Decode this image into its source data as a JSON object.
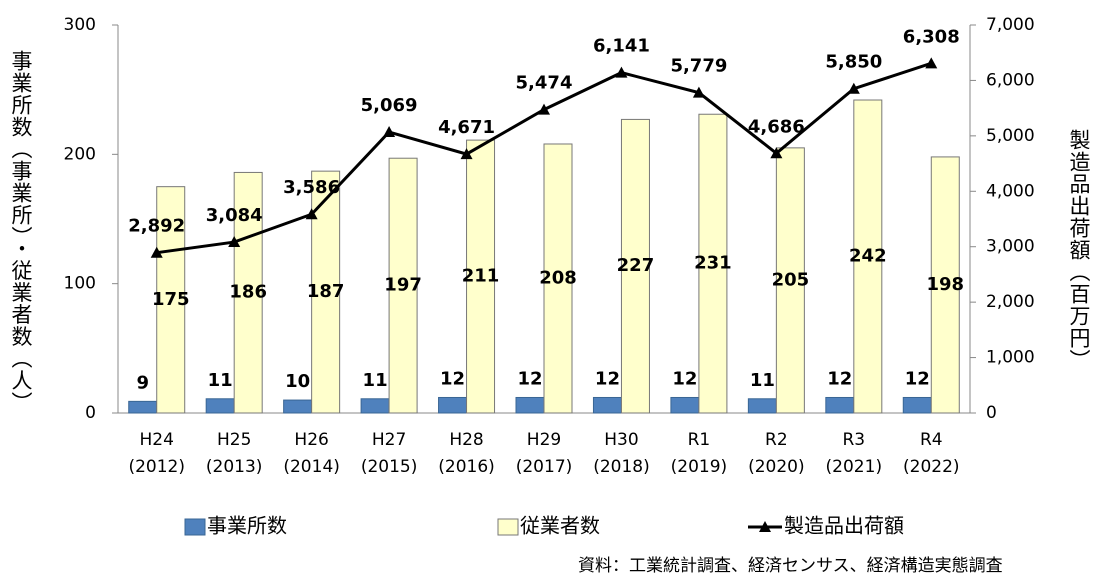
{
  "chart_data": {
    "type": "bar_line",
    "categories": [
      [
        "H24",
        "(2012)"
      ],
      [
        "H25",
        "(2013)"
      ],
      [
        "H26",
        "(2014)"
      ],
      [
        "H27",
        "(2015)"
      ],
      [
        "H28",
        "(2016)"
      ],
      [
        "H29",
        "(2017)"
      ],
      [
        "H30",
        "(2018)"
      ],
      [
        "R1",
        "(2019)"
      ],
      [
        "R2",
        "(2020)"
      ],
      [
        "R3",
        "(2021)"
      ],
      [
        "R4",
        "(2022)"
      ]
    ],
    "series": [
      {
        "name": "事業所数",
        "color": "#4f81bd",
        "type": "bar",
        "values": [
          9,
          11,
          10,
          11,
          12,
          12,
          12,
          12,
          11,
          12,
          12
        ]
      },
      {
        "name": "従業者数",
        "color": "#ffffcc",
        "type": "bar",
        "values": [
          175,
          186,
          187,
          197,
          211,
          208,
          227,
          231,
          205,
          242,
          198
        ]
      },
      {
        "name": "製造品出荷額",
        "color": "#000000",
        "type": "line",
        "axis": "y2",
        "values": [
          2892,
          3084,
          3586,
          5069,
          4671,
          5474,
          6141,
          5779,
          4686,
          5850,
          6308
        ],
        "value_labels": [
          "2,892",
          "3,084",
          "3,586",
          "5,069",
          "4,671",
          "5,474",
          "6,141",
          "5,779",
          "4,686",
          "5,850",
          "6,308"
        ]
      }
    ],
    "ylim": [
      0,
      300
    ],
    "yticks": [
      0,
      100,
      200,
      300
    ],
    "y2lim": [
      0,
      7000
    ],
    "y2ticks": [
      0,
      {
        "value": 1000,
        "label": "1,000"
      },
      {
        "value": 2000,
        "label": "2,000"
      },
      {
        "value": 3000,
        "label": "3,000"
      },
      {
        "value": 4000,
        "label": "4,000"
      },
      {
        "value": 5000,
        "label": "5,000"
      },
      {
        "value": 6000,
        "label": "6,000"
      },
      {
        "value": 7000,
        "label": "7,000"
      }
    ],
    "ylabel": "事業所数（事業所）・従業者数（人）",
    "y2label": "製造品出荷額（百万円）",
    "note": "資料：工業統計調査、経済センサス、経済構造実態調査",
    "legend": "bottom"
  }
}
